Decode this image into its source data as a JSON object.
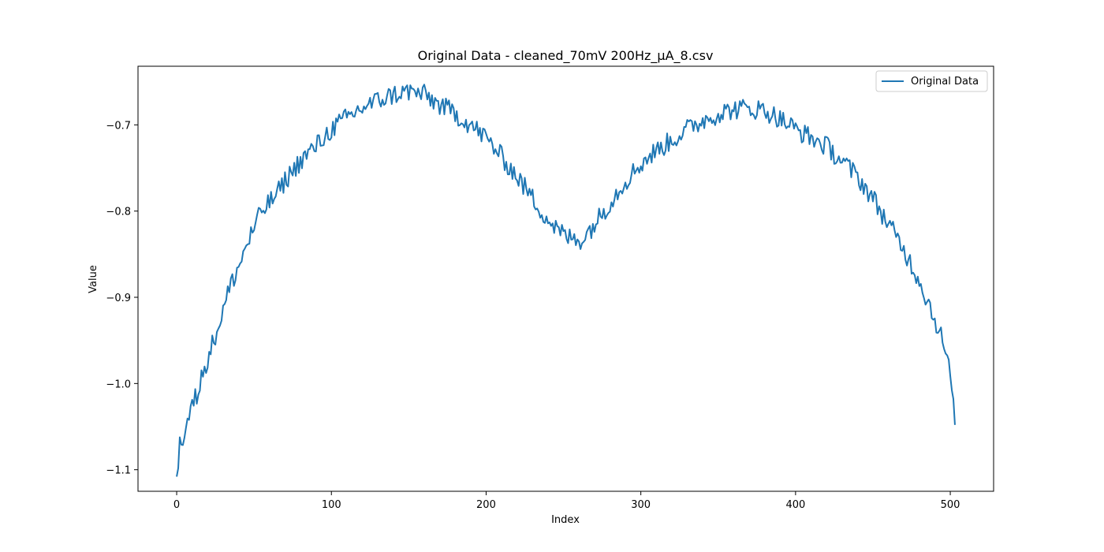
{
  "chart_data": {
    "type": "line",
    "title": "Original Data - cleaned_70mV 200Hz_µA_8.csv",
    "xlabel": "Index",
    "ylabel": "Value",
    "xlim": [
      -25,
      528
    ],
    "ylim": [
      -1.125,
      -0.632
    ],
    "xticks": [
      0,
      100,
      200,
      300,
      400,
      500
    ],
    "xtick_labels": [
      "0",
      "100",
      "200",
      "300",
      "400",
      "500"
    ],
    "yticks": [
      -1.1,
      -1.0,
      -0.9,
      -0.8,
      -0.7
    ],
    "ytick_labels": [
      "−1.1",
      "−1.0",
      "−0.9",
      "−0.8",
      "−0.7"
    ],
    "legend": {
      "position": "top-right",
      "entries": [
        "Original Data"
      ]
    },
    "series": [
      {
        "name": "Original Data",
        "color": "#1f77b4",
        "model": {
          "n": 504,
          "anchors": [
            [
              0,
              -1.108
            ],
            [
              2,
              -1.07
            ],
            [
              5,
              -1.055
            ],
            [
              10,
              -1.03
            ],
            [
              15,
              -1.0
            ],
            [
              20,
              -0.97
            ],
            [
              25,
              -0.945
            ],
            [
              30,
              -0.915
            ],
            [
              35,
              -0.885
            ],
            [
              40,
              -0.865
            ],
            [
              45,
              -0.84
            ],
            [
              50,
              -0.82
            ],
            [
              55,
              -0.8
            ],
            [
              60,
              -0.79
            ],
            [
              65,
              -0.78
            ],
            [
              70,
              -0.765
            ],
            [
              75,
              -0.753
            ],
            [
              80,
              -0.742
            ],
            [
              85,
              -0.733
            ],
            [
              90,
              -0.725
            ],
            [
              95,
              -0.715
            ],
            [
              100,
              -0.705
            ],
            [
              110,
              -0.692
            ],
            [
              120,
              -0.68
            ],
            [
              130,
              -0.672
            ],
            [
              140,
              -0.665
            ],
            [
              150,
              -0.661
            ],
            [
              160,
              -0.665
            ],
            [
              170,
              -0.677
            ],
            [
              180,
              -0.687
            ],
            [
              190,
              -0.7
            ],
            [
              200,
              -0.715
            ],
            [
              210,
              -0.737
            ],
            [
              220,
              -0.76
            ],
            [
              230,
              -0.785
            ],
            [
              240,
              -0.81
            ],
            [
              248,
              -0.825
            ],
            [
              255,
              -0.832
            ],
            [
              262,
              -0.833
            ],
            [
              270,
              -0.815
            ],
            [
              280,
              -0.79
            ],
            [
              290,
              -0.765
            ],
            [
              300,
              -0.745
            ],
            [
              310,
              -0.73
            ],
            [
              320,
              -0.718
            ],
            [
              330,
              -0.705
            ],
            [
              340,
              -0.695
            ],
            [
              350,
              -0.687
            ],
            [
              360,
              -0.682
            ],
            [
              370,
              -0.681
            ],
            [
              380,
              -0.683
            ],
            [
              390,
              -0.693
            ],
            [
              400,
              -0.705
            ],
            [
              410,
              -0.715
            ],
            [
              420,
              -0.725
            ],
            [
              430,
              -0.742
            ],
            [
              440,
              -0.76
            ],
            [
              450,
              -0.785
            ],
            [
              460,
              -0.815
            ],
            [
              470,
              -0.845
            ],
            [
              480,
              -0.88
            ],
            [
              490,
              -0.925
            ],
            [
              495,
              -0.95
            ],
            [
              500,
              -0.99
            ],
            [
              503,
              -1.048
            ]
          ],
          "noise_amplitude": 0.012,
          "seed": 8
        }
      }
    ]
  }
}
